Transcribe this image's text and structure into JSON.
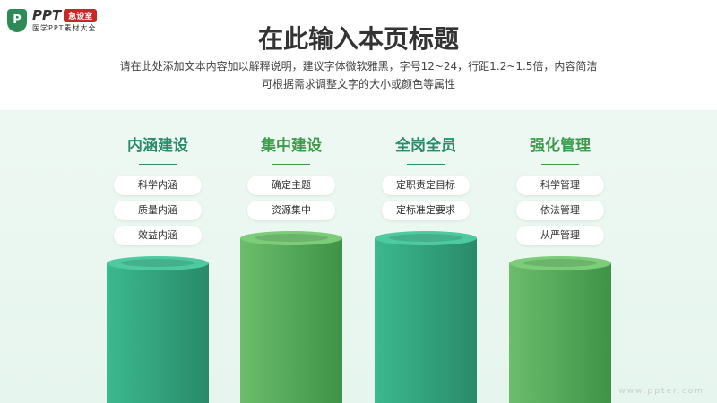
{
  "logo": {
    "mark": "P",
    "brand": "PPT",
    "tag": "急设室",
    "subtitle": "医学PPT素材大全"
  },
  "title": "在此输入本页标题",
  "subtitle_lines": [
    "请在此处添加文本内容加以解释说明，建议字体微软雅黑，字号12~24，行距1.2~1.5倍，内容简洁",
    "可根据需求调整文字的大小或颜色等属性"
  ],
  "columns": [
    {
      "title": "内涵建设",
      "color": "#2a8a6c",
      "items": [
        "科学内涵",
        "质量内涵",
        "效益内涵"
      ]
    },
    {
      "title": "集中建设",
      "color": "#3d9a4a",
      "items": [
        "确定主题",
        "资源集中"
      ]
    },
    {
      "title": "全岗全员",
      "color": "#2a8a6c",
      "items": [
        "定职责定目标",
        "定标准定要求"
      ]
    },
    {
      "title": "强化管理",
      "color": "#3d9a4a",
      "items": [
        "科学管理",
        "依法管理",
        "从严管理"
      ]
    }
  ],
  "watermark": "www.ppter.com"
}
